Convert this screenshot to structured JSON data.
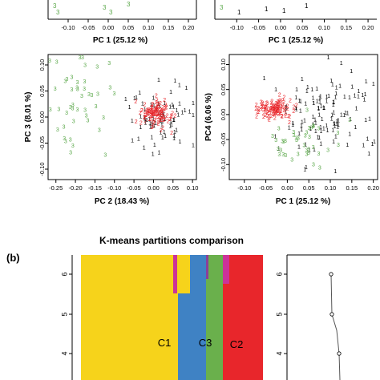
{
  "panel_b_label": "(b)",
  "chart_data": [
    {
      "id": "top-left",
      "type": "scatter",
      "xlabel": "PC 1 (25.12 %)",
      "xlim": [
        -0.15,
        0.22
      ],
      "xticks": [
        "-0.10",
        "-0.05",
        "0.00",
        "0.05",
        "0.10",
        "0.15",
        "0.20"
      ],
      "tick_values": [
        -0.1,
        -0.05,
        0.0,
        0.05,
        0.1,
        0.15,
        0.2
      ]
    },
    {
      "id": "top-right",
      "type": "scatter",
      "xlabel": "PC 1 (25.12 %)",
      "xlim": [
        -0.15,
        0.22
      ],
      "xticks": [
        "-0.10",
        "-0.05",
        "0.00",
        "0.05",
        "0.10",
        "0.15",
        "0.20"
      ],
      "tick_values": [
        -0.1,
        -0.05,
        0.0,
        0.05,
        0.1,
        0.15,
        0.2
      ]
    },
    {
      "id": "middle-left",
      "type": "scatter",
      "xlabel": "PC 2 (18.43 %)",
      "ylabel": "PC 3 (8.01 %)",
      "xlim": [
        -0.27,
        0.11
      ],
      "ylim": [
        -0.12,
        0.12
      ],
      "xticks": [
        "-0.25",
        "-0.20",
        "-0.15",
        "-0.10",
        "-0.05",
        "0.00",
        "0.05",
        "0.10"
      ],
      "xtick_values": [
        -0.25,
        -0.2,
        -0.15,
        -0.1,
        -0.05,
        0.0,
        0.05,
        0.1
      ],
      "yticks": [
        "-0.10",
        "-0.05",
        "0.00",
        "0.05",
        "0.10"
      ],
      "ytick_values": [
        -0.1,
        -0.05,
        0.0,
        0.05,
        0.1
      ],
      "series": [
        {
          "label": "1",
          "color": "#000000",
          "cx": 0.02,
          "cy": 0.0,
          "sx": 0.04,
          "sy": 0.04,
          "n": 80,
          "seed": 11
        },
        {
          "label": "2",
          "color": "#e8262b",
          "cx": 0.01,
          "cy": 0.005,
          "sx": 0.02,
          "sy": 0.015,
          "n": 110,
          "seed": 12
        },
        {
          "label": "3",
          "color": "#5ba84a",
          "cx": -0.19,
          "cy": 0.03,
          "sx": 0.05,
          "sy": 0.05,
          "n": 45,
          "seed": 13
        }
      ]
    },
    {
      "id": "middle-right",
      "type": "scatter",
      "xlabel": "PC 1 (25.12 %)",
      "ylabel": "PC4 (6.06 %)",
      "xlim": [
        -0.135,
        0.21
      ],
      "ylim": [
        -0.13,
        0.12
      ],
      "xticks": [
        "-0.10",
        "-0.05",
        "0.00",
        "0.05",
        "0.10",
        "0.15",
        "0.20"
      ],
      "xtick_values": [
        -0.1,
        -0.05,
        0.0,
        0.05,
        0.1,
        0.15,
        0.2
      ],
      "yticks": [
        "-0.10",
        "-0.05",
        "0.00",
        "0.05",
        "0.10"
      ],
      "ytick_values": [
        -0.1,
        -0.05,
        0.0,
        0.05,
        0.1
      ],
      "series": [
        {
          "label": "1",
          "color": "#000000",
          "cx": 0.09,
          "cy": 0.0,
          "sx": 0.06,
          "sy": 0.05,
          "n": 120,
          "seed": 21
        },
        {
          "label": "2",
          "color": "#e8262b",
          "cx": -0.03,
          "cy": 0.01,
          "sx": 0.02,
          "sy": 0.012,
          "n": 110,
          "seed": 22
        },
        {
          "label": "3",
          "color": "#5ba84a",
          "cx": 0.03,
          "cy": -0.06,
          "sx": 0.05,
          "sy": 0.03,
          "n": 40,
          "seed": 23
        }
      ]
    },
    {
      "id": "kmeans",
      "type": "bar",
      "title": "K-means partitions comparison",
      "yticks": [
        "4",
        "5",
        "6"
      ],
      "cluster_labels": [
        "C1",
        "C3",
        "C2"
      ],
      "colors": {
        "yellow": "#f6d31b",
        "blue": "#3f82c4",
        "green": "#6ab04c",
        "red": "#e8262b",
        "magenta": "#cc3399",
        "purple": "#8a3f9a"
      }
    },
    {
      "id": "side-line",
      "type": "line",
      "yticks": [
        "4",
        "5",
        "6"
      ],
      "y": [
        6,
        5,
        4
      ]
    }
  ]
}
